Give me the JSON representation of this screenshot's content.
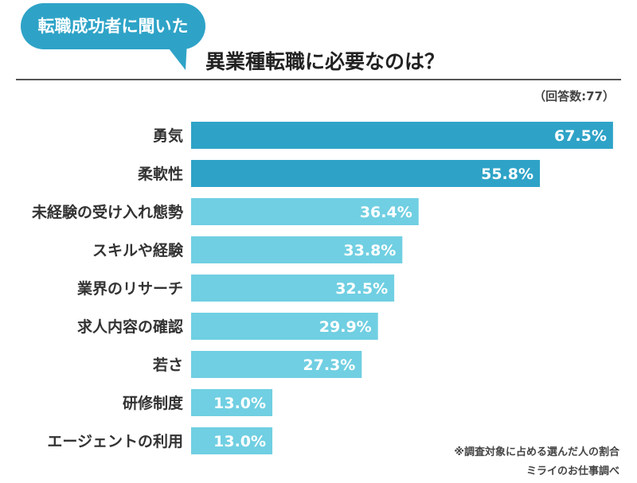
{
  "header": {
    "bubble_text": "転職成功者に聞いた",
    "title": "異業種転職に必要なのは？",
    "sample": "（回答数:77）"
  },
  "chart_data": {
    "type": "bar",
    "orientation": "horizontal",
    "title": "異業種転職に必要なのは？",
    "unit": "%",
    "xlim": [
      0,
      100
    ],
    "categories": [
      "勇気",
      "柔軟性",
      "未経験の受け入れ態勢",
      "スキルや経験",
      "業界のリサーチ",
      "求人内容の確認",
      "若さ",
      "研修制度",
      "エージェントの利用"
    ],
    "values": [
      67.5,
      55.8,
      36.4,
      33.8,
      32.5,
      29.9,
      27.3,
      13.0,
      13.0
    ],
    "labels": [
      "67.5%",
      "55.8%",
      "36.4%",
      "33.8%",
      "32.5%",
      "29.9%",
      "27.3%",
      "13.0%",
      "13.0%"
    ],
    "colors": [
      "#2ea3c7",
      "#2ea3c7",
      "#70cfe2",
      "#70cfe2",
      "#70cfe2",
      "#70cfe2",
      "#70cfe2",
      "#70cfe2",
      "#70cfe2"
    ]
  },
  "footer": {
    "note": "※調査対象に占める選んだ人の割合",
    "source": "ミライのお仕事調べ"
  }
}
